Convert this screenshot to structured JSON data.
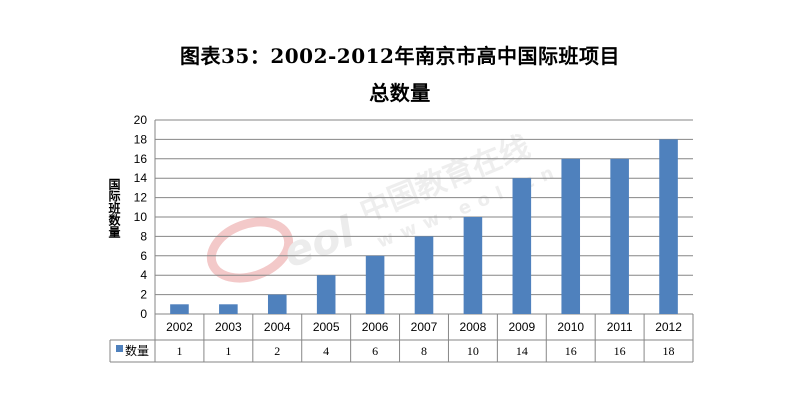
{
  "chart_data": {
    "type": "bar",
    "title": "图表35：2002-2012年南京市高中国际班项目",
    "subtitle": "总数量",
    "ylabel": "国际班数量",
    "xlabel": "",
    "categories": [
      "2002",
      "2003",
      "2004",
      "2005",
      "2006",
      "2007",
      "2008",
      "2009",
      "2010",
      "2011",
      "2012"
    ],
    "series": [
      {
        "name": "数量",
        "values": [
          1,
          1,
          2,
          4,
          6,
          8,
          10,
          14,
          16,
          16,
          18
        ]
      }
    ],
    "ylim": [
      0,
      20
    ],
    "yticks": [
      0,
      2,
      4,
      6,
      8,
      10,
      12,
      14,
      16,
      18,
      20
    ],
    "grid": true,
    "legend": "data-table-left",
    "bar_color": "#4f81bd",
    "watermark": {
      "cn": "中国教育在线",
      "url": "www.eol.cn",
      "logo": "eol"
    }
  }
}
